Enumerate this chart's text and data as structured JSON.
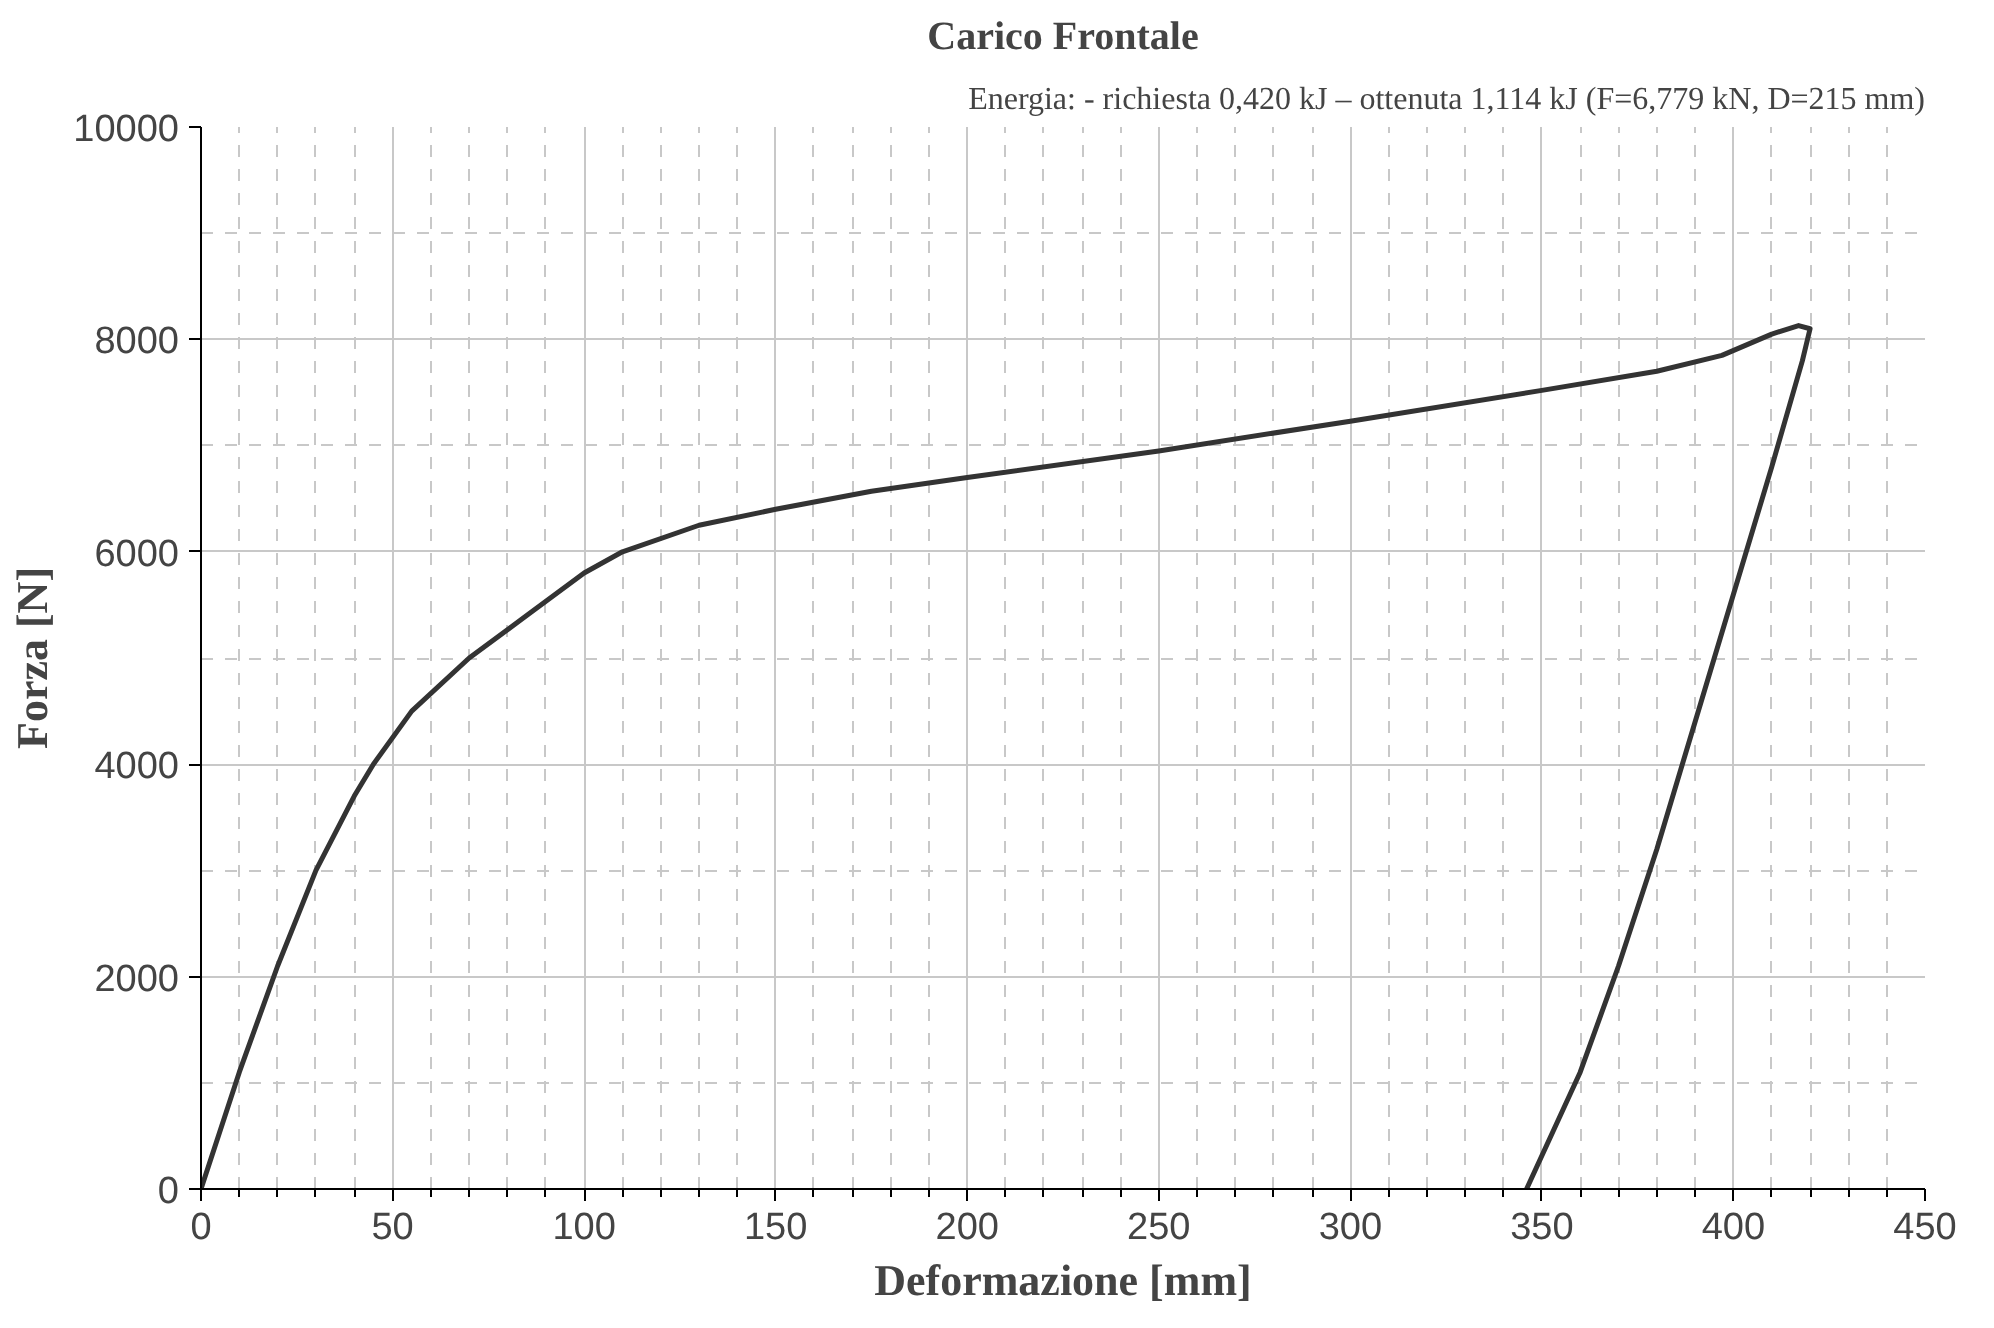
{
  "chart_data": {
    "type": "line",
    "title": "Carico Frontale",
    "annotations": [
      "Energia: - richiesta 0,420 kJ – ottenuta 1,114 kJ (F=6,779 kN, D=215 mm)"
    ],
    "xlabel": "Deformazione [mm]",
    "ylabel": "Forza [N]",
    "x": [
      0,
      10,
      20,
      30,
      40,
      45,
      55,
      70,
      85,
      100,
      110,
      130,
      150,
      175,
      200,
      250,
      300,
      350,
      380,
      397,
      410,
      417,
      420,
      418,
      410,
      400,
      390,
      380,
      370,
      360,
      346
    ],
    "series": [
      {
        "color": "#333333",
        "values": [
          0,
          1100,
          2100,
          3000,
          3700,
          4000,
          4500,
          5000,
          5400,
          5800,
          6000,
          6250,
          6400,
          6570,
          6700,
          6950,
          7230,
          7520,
          7700,
          7850,
          8050,
          8130,
          8100,
          7800,
          6800,
          5600,
          4400,
          3200,
          2100,
          1100,
          0
        ]
      }
    ],
    "xlim": [
      0,
      450
    ],
    "xticks": [
      0,
      50,
      100,
      150,
      200,
      250,
      300,
      350,
      400,
      450
    ],
    "ylim": [
      0,
      10000
    ],
    "yticks": [
      0,
      2000,
      4000,
      6000,
      8000,
      10000
    ],
    "grid": true,
    "marker": "none",
    "line_style": "solid"
  }
}
